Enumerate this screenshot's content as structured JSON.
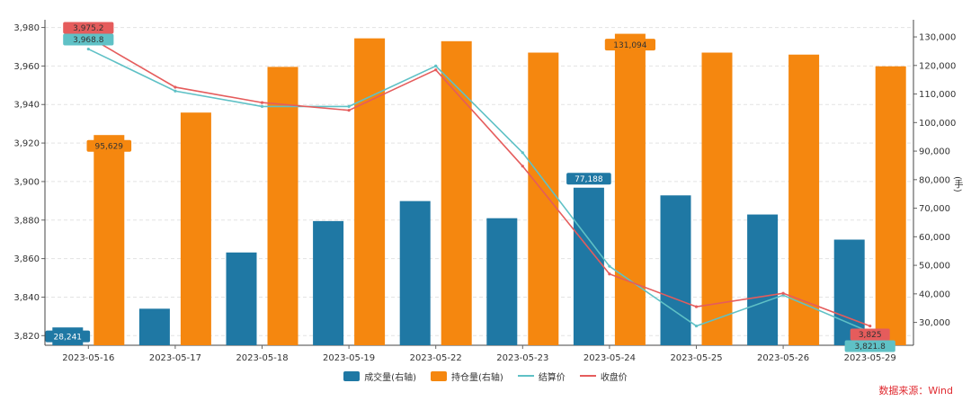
{
  "chart_data": {
    "type": "bar+line",
    "categories": [
      "2023-05-16",
      "2023-05-17",
      "2023-05-18",
      "2023-05-19",
      "2023-05-22",
      "2023-05-23",
      "2023-05-24",
      "2023-05-25",
      "2023-05-26",
      "2023-05-29"
    ],
    "bar_series": [
      {
        "name": "成交量(右轴)",
        "color": "#1f78a4",
        "values": [
          28241,
          34800,
          54500,
          65500,
          72500,
          66500,
          77188,
          74500,
          67800,
          59000
        ]
      },
      {
        "name": "持仓量(右轴)",
        "color": "#f5870f",
        "values": [
          95629,
          103500,
          119500,
          129500,
          128500,
          124500,
          131094,
          124500,
          123800,
          119700
        ]
      }
    ],
    "line_series": [
      {
        "name": "结算价",
        "color": "#5fc1c6",
        "values": [
          3968.8,
          3947,
          3939,
          3939,
          3960,
          3915,
          3856,
          3825,
          3841,
          3821.8
        ]
      },
      {
        "name": "收盘价",
        "color": "#e55c5c",
        "values": [
          3975.2,
          3949,
          3941,
          3937,
          3958,
          3908,
          3852,
          3835,
          3842,
          3825
        ]
      }
    ],
    "y_left": {
      "min": 3815,
      "max": 3984,
      "ticks": [
        3820,
        3840,
        3860,
        3880,
        3900,
        3920,
        3940,
        3960,
        3980
      ]
    },
    "y_right": {
      "min": 22000,
      "max": 136000,
      "ticks": [
        30000,
        40000,
        50000,
        60000,
        70000,
        80000,
        90000,
        100000,
        110000,
        120000,
        130000
      ],
      "unit": "(手)"
    },
    "callouts": [
      {
        "series": "收盘价",
        "index": 0,
        "label": "3,975.2"
      },
      {
        "series": "结算价",
        "index": 0,
        "label": "3,968.8"
      },
      {
        "series": "持仓量(右轴)",
        "index": 0,
        "label": "95,629"
      },
      {
        "series": "成交量(右轴)",
        "index": 0,
        "label": "28,241"
      },
      {
        "series": "持仓量(右轴)",
        "index": 6,
        "label": "131,094"
      },
      {
        "series": "成交量(右轴)",
        "index": 6,
        "label": "77,188"
      },
      {
        "series": "收盘价",
        "index": 9,
        "label": "3,825"
      },
      {
        "series": "结算价",
        "index": 9,
        "label": "3,821.8"
      }
    ],
    "grid": "horizontal-dashed",
    "legend_position": "bottom-center"
  },
  "source_label": "数据来源：Wind",
  "source_color": "#e0292f"
}
